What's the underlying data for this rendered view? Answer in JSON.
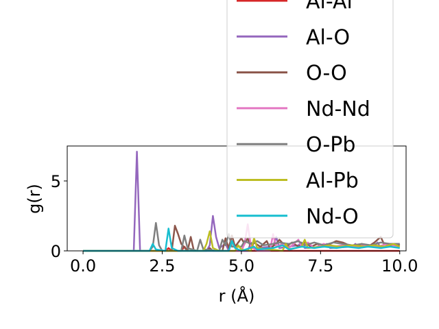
{
  "chart_data": {
    "type": "line",
    "xlabel": "r (Å)",
    "ylabel": "g(r)",
    "xlim": [
      -0.5,
      10.2
    ],
    "ylim": [
      0,
      7.5
    ],
    "xticks": [
      0.0,
      2.5,
      5.0,
      7.5,
      10.0
    ],
    "xtick_labels": [
      "0.0",
      "2.5",
      "5.0",
      "7.5",
      "10.0"
    ],
    "yticks": [
      0,
      5
    ],
    "ytick_labels": [
      "0",
      "5"
    ],
    "grid": false,
    "legend_position": "upper right",
    "series": [
      {
        "name": "Al-Al",
        "color": "#d62728",
        "points": [
          [
            0,
            0
          ],
          [
            2.6,
            0
          ],
          [
            2.7,
            0.2
          ],
          [
            2.8,
            0
          ],
          [
            3.1,
            0
          ],
          [
            3.2,
            0.3
          ],
          [
            3.3,
            0
          ],
          [
            10,
            0
          ]
        ]
      },
      {
        "name": "Al-O",
        "color": "#9467bd",
        "points": [
          [
            0,
            0
          ],
          [
            1.6,
            0
          ],
          [
            1.7,
            7.1
          ],
          [
            1.8,
            0
          ],
          [
            3.9,
            0
          ],
          [
            4.0,
            0.4
          ],
          [
            4.1,
            2.5
          ],
          [
            4.2,
            1.0
          ],
          [
            4.3,
            0.2
          ],
          [
            4.5,
            0.5
          ],
          [
            4.6,
            0
          ],
          [
            5.2,
            0
          ],
          [
            5.3,
            0.6
          ],
          [
            5.4,
            0.2
          ],
          [
            6.0,
            0.3
          ],
          [
            6.1,
            1.0
          ],
          [
            6.2,
            0.2
          ],
          [
            6.8,
            0.4
          ],
          [
            6.9,
            0.6
          ],
          [
            7.0,
            0.2
          ],
          [
            7.6,
            0.3
          ],
          [
            7.7,
            0.5
          ],
          [
            7.8,
            0.2
          ],
          [
            8.5,
            0.3
          ],
          [
            8.6,
            0.5
          ],
          [
            8.7,
            0.2
          ],
          [
            9.2,
            0.4
          ],
          [
            9.3,
            0.6
          ],
          [
            9.4,
            0.2
          ],
          [
            9.8,
            0.4
          ],
          [
            10,
            0.3
          ]
        ]
      },
      {
        "name": "O-O",
        "color": "#8c564b",
        "points": [
          [
            0,
            0
          ],
          [
            2.8,
            0
          ],
          [
            2.9,
            1.8
          ],
          [
            3.0,
            1.2
          ],
          [
            3.1,
            0.5
          ],
          [
            3.3,
            0
          ],
          [
            3.4,
            1.0
          ],
          [
            3.5,
            0
          ],
          [
            3.9,
            0
          ],
          [
            4.0,
            0.2
          ],
          [
            4.1,
            0
          ],
          [
            4.4,
            0
          ],
          [
            4.5,
            0.9
          ],
          [
            4.6,
            0.2
          ],
          [
            4.7,
            1.1
          ],
          [
            4.8,
            0.3
          ],
          [
            5.0,
            0.9
          ],
          [
            5.1,
            0.5
          ],
          [
            5.2,
            0.9
          ],
          [
            5.3,
            0.2
          ],
          [
            5.4,
            0.6
          ],
          [
            5.6,
            0.3
          ],
          [
            5.8,
            0.7
          ],
          [
            5.9,
            0.2
          ],
          [
            6.1,
            0.5
          ],
          [
            6.2,
            0.8
          ],
          [
            6.4,
            0.3
          ],
          [
            6.6,
            0.6
          ],
          [
            6.8,
            0.3
          ],
          [
            7.0,
            0.6
          ],
          [
            7.2,
            0.3
          ],
          [
            7.4,
            0.5
          ],
          [
            7.6,
            0.3
          ],
          [
            7.8,
            0.5
          ],
          [
            8.0,
            0.7
          ],
          [
            8.2,
            0.6
          ],
          [
            8.4,
            0.4
          ],
          [
            8.6,
            0.3
          ],
          [
            8.8,
            0.5
          ],
          [
            9.0,
            0.3
          ],
          [
            9.2,
            0.6
          ],
          [
            9.4,
            1.0
          ],
          [
            9.5,
            0.5
          ],
          [
            9.7,
            0.4
          ],
          [
            9.9,
            0.5
          ],
          [
            10,
            0.4
          ]
        ]
      },
      {
        "name": "Nd-Nd",
        "color": "#e377c2",
        "points": [
          [
            0,
            0
          ],
          [
            5.0,
            0
          ],
          [
            5.1,
            0.5
          ],
          [
            5.2,
            1.9
          ],
          [
            5.3,
            0.3
          ],
          [
            5.5,
            0
          ],
          [
            5.9,
            0
          ],
          [
            6.0,
            1.2
          ],
          [
            6.1,
            0.3
          ],
          [
            6.3,
            0.5
          ],
          [
            6.5,
            0.2
          ],
          [
            6.8,
            0.8
          ],
          [
            6.9,
            0.3
          ],
          [
            7.1,
            0.6
          ],
          [
            7.3,
            0.2
          ],
          [
            7.6,
            0.5
          ],
          [
            7.9,
            0.3
          ],
          [
            8.2,
            0.4
          ],
          [
            8.6,
            0.3
          ],
          [
            9.0,
            0.4
          ],
          [
            9.3,
            0.3
          ],
          [
            9.6,
            0.5
          ],
          [
            10,
            0.3
          ]
        ]
      },
      {
        "name": "O-Pb",
        "color": "#7f7f7f",
        "points": [
          [
            0,
            0
          ],
          [
            2.1,
            0
          ],
          [
            2.2,
            0.3
          ],
          [
            2.3,
            2.0
          ],
          [
            2.4,
            0.4
          ],
          [
            2.5,
            0
          ],
          [
            3.1,
            0
          ],
          [
            3.2,
            1.1
          ],
          [
            3.3,
            0.2
          ],
          [
            3.6,
            0
          ],
          [
            3.7,
            0.8
          ],
          [
            3.8,
            0.1
          ],
          [
            4.3,
            0
          ],
          [
            4.4,
            0.8
          ],
          [
            4.5,
            0.4
          ],
          [
            4.6,
            1.2
          ],
          [
            4.7,
            0.3
          ],
          [
            5.0,
            0.3
          ],
          [
            5.1,
            0.7
          ],
          [
            5.3,
            0.5
          ],
          [
            5.5,
            0.7
          ],
          [
            5.7,
            0.4
          ],
          [
            6.0,
            0.5
          ],
          [
            6.2,
            0.6
          ],
          [
            6.5,
            0.5
          ],
          [
            6.8,
            0.7
          ],
          [
            7.0,
            0.4
          ],
          [
            7.3,
            0.6
          ],
          [
            7.6,
            0.4
          ],
          [
            7.9,
            0.6
          ],
          [
            8.2,
            0.5
          ],
          [
            8.5,
            0.4
          ],
          [
            8.8,
            0.5
          ],
          [
            9.1,
            0.4
          ],
          [
            9.4,
            0.6
          ],
          [
            9.7,
            0.5
          ],
          [
            10,
            0.5
          ]
        ]
      },
      {
        "name": "Al-Pb",
        "color": "#bcbd22",
        "points": [
          [
            0,
            0
          ],
          [
            3.8,
            0
          ],
          [
            3.9,
            0.5
          ],
          [
            4.0,
            1.4
          ],
          [
            4.1,
            0.2
          ],
          [
            4.3,
            0
          ],
          [
            4.8,
            0
          ],
          [
            4.9,
            0.4
          ],
          [
            5.0,
            0.1
          ],
          [
            5.3,
            0
          ],
          [
            5.4,
            0.9
          ],
          [
            5.5,
            0.2
          ],
          [
            6.3,
            0
          ],
          [
            6.4,
            0.5
          ],
          [
            6.5,
            0.1
          ],
          [
            6.9,
            0.3
          ],
          [
            7.0,
            0.8
          ],
          [
            7.1,
            0.2
          ],
          [
            7.5,
            0.3
          ],
          [
            7.8,
            0.4
          ],
          [
            8.1,
            0.3
          ],
          [
            8.5,
            0.4
          ],
          [
            8.9,
            0.3
          ],
          [
            9.2,
            0.4
          ],
          [
            9.5,
            0.3
          ],
          [
            9.8,
            0.5
          ],
          [
            10,
            0.3
          ]
        ]
      },
      {
        "name": "Nd-O",
        "color": "#17becf",
        "points": [
          [
            0,
            0
          ],
          [
            2.1,
            0
          ],
          [
            2.2,
            0.5
          ],
          [
            2.3,
            0.1
          ],
          [
            2.6,
            0
          ],
          [
            2.7,
            1.6
          ],
          [
            2.8,
            0.2
          ],
          [
            3.0,
            0
          ],
          [
            4.6,
            0
          ],
          [
            4.7,
            0.7
          ],
          [
            4.8,
            0.2
          ],
          [
            5.0,
            0
          ],
          [
            5.4,
            0.3
          ],
          [
            5.5,
            0.1
          ],
          [
            6.0,
            0.2
          ],
          [
            6.3,
            0.4
          ],
          [
            6.5,
            0.1
          ],
          [
            6.9,
            0.3
          ],
          [
            7.3,
            0.2
          ],
          [
            7.6,
            0.3
          ],
          [
            8.0,
            0.2
          ],
          [
            8.3,
            0.3
          ],
          [
            8.7,
            0.2
          ],
          [
            9.0,
            0.3
          ],
          [
            9.4,
            0.2
          ],
          [
            9.7,
            0.3
          ],
          [
            10,
            0.2
          ]
        ]
      }
    ]
  }
}
